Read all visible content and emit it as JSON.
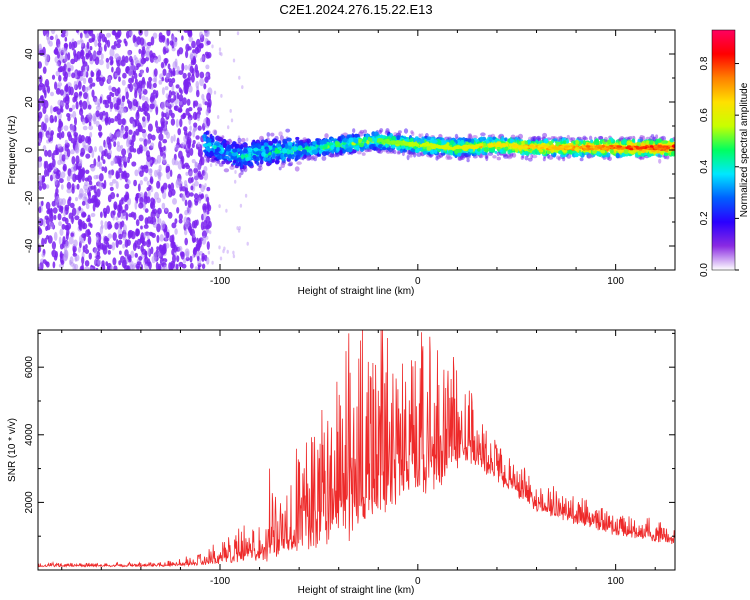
{
  "title": "C2E1.2024.276.15.22.E13",
  "colors": {
    "background": "#ffffff",
    "snr_line": "#ee2a2a",
    "noise_dot": "#7a22ee",
    "noise_dot_light": "#b58cf5",
    "colorbar_stops": [
      "#ffffff",
      "#8a2be2",
      "#2a00ff",
      "#0060ff",
      "#00e8ff",
      "#00ff60",
      "#c8ff00",
      "#ffe000",
      "#ff8000",
      "#ff0000",
      "#ff0060"
    ]
  },
  "chart_data": [
    {
      "type": "heatmap",
      "xlabel": "Height of straight line (km)",
      "ylabel": "Frequency (Hz)",
      "xlim": [
        -192,
        130
      ],
      "ylim": [
        -50,
        50
      ],
      "x_ticks": [
        -100,
        0,
        100
      ],
      "y_ticks": [
        -40,
        -20,
        0,
        20,
        40
      ],
      "colorbar": {
        "label": "Normalized spectral amplitude",
        "range": [
          0.0,
          0.93
        ],
        "ticks": [
          "0.0",
          "0.2",
          "0.4",
          "0.6",
          "0.8"
        ]
      },
      "description_values": {
        "noise_region_x": [
          -192,
          -108
        ],
        "signal_start_x": -108,
        "signal_frequency_hz": 1,
        "signal_peak_amplitude": 0.9
      },
      "ridge": [
        {
          "x": -108,
          "y": 3
        },
        {
          "x": -100,
          "y": 0
        },
        {
          "x": -90,
          "y": -3
        },
        {
          "x": -80,
          "y": -1
        },
        {
          "x": -60,
          "y": 0
        },
        {
          "x": -40,
          "y": 2
        },
        {
          "x": -20,
          "y": 4
        },
        {
          "x": 0,
          "y": 2
        },
        {
          "x": 20,
          "y": 1
        },
        {
          "x": 40,
          "y": 2
        },
        {
          "x": 60,
          "y": 1
        },
        {
          "x": 80,
          "y": 1
        },
        {
          "x": 100,
          "y": 1
        },
        {
          "x": 130,
          "y": 1
        }
      ],
      "grid": false,
      "legend": "colorbar right"
    },
    {
      "type": "line",
      "xlabel": "Height of straight line (km)",
      "ylabel": "SNR (10 * v/v)",
      "xlim": [
        -192,
        130
      ],
      "ylim": [
        0,
        7100
      ],
      "x_ticks": [
        -100,
        0,
        100
      ],
      "y_ticks": [
        2000,
        4000,
        6000
      ],
      "grid": false,
      "envelope": [
        {
          "x": -192,
          "base": 120,
          "amp": 80
        },
        {
          "x": -130,
          "base": 120,
          "amp": 90
        },
        {
          "x": -110,
          "base": 200,
          "amp": 250
        },
        {
          "x": -90,
          "base": 400,
          "amp": 700
        },
        {
          "x": -70,
          "base": 700,
          "amp": 1600
        },
        {
          "x": -50,
          "base": 1200,
          "amp": 2600
        },
        {
          "x": -35,
          "base": 2000,
          "amp": 4500
        },
        {
          "x": -20,
          "base": 2500,
          "amp": 3800
        },
        {
          "x": -5,
          "base": 3000,
          "amp": 3200
        },
        {
          "x": 10,
          "base": 3200,
          "amp": 3200
        },
        {
          "x": 25,
          "base": 3600,
          "amp": 1500
        },
        {
          "x": 40,
          "base": 2800,
          "amp": 900
        },
        {
          "x": 60,
          "base": 1900,
          "amp": 700
        },
        {
          "x": 80,
          "base": 1500,
          "amp": 600
        },
        {
          "x": 100,
          "base": 1150,
          "amp": 500
        },
        {
          "x": 130,
          "base": 850,
          "amp": 400
        }
      ],
      "peaks": [
        {
          "x": -35,
          "y": 7000
        },
        {
          "x": -20,
          "y": 5300
        },
        {
          "x": 6,
          "y": 6900
        },
        {
          "x": 10,
          "y": 6500
        },
        {
          "x": 18,
          "y": 6300
        },
        {
          "x": 24,
          "y": 5200
        },
        {
          "x": -75,
          "y": 3000
        },
        {
          "x": -60,
          "y": 3200
        },
        {
          "x": -48,
          "y": 3700
        }
      ]
    }
  ]
}
